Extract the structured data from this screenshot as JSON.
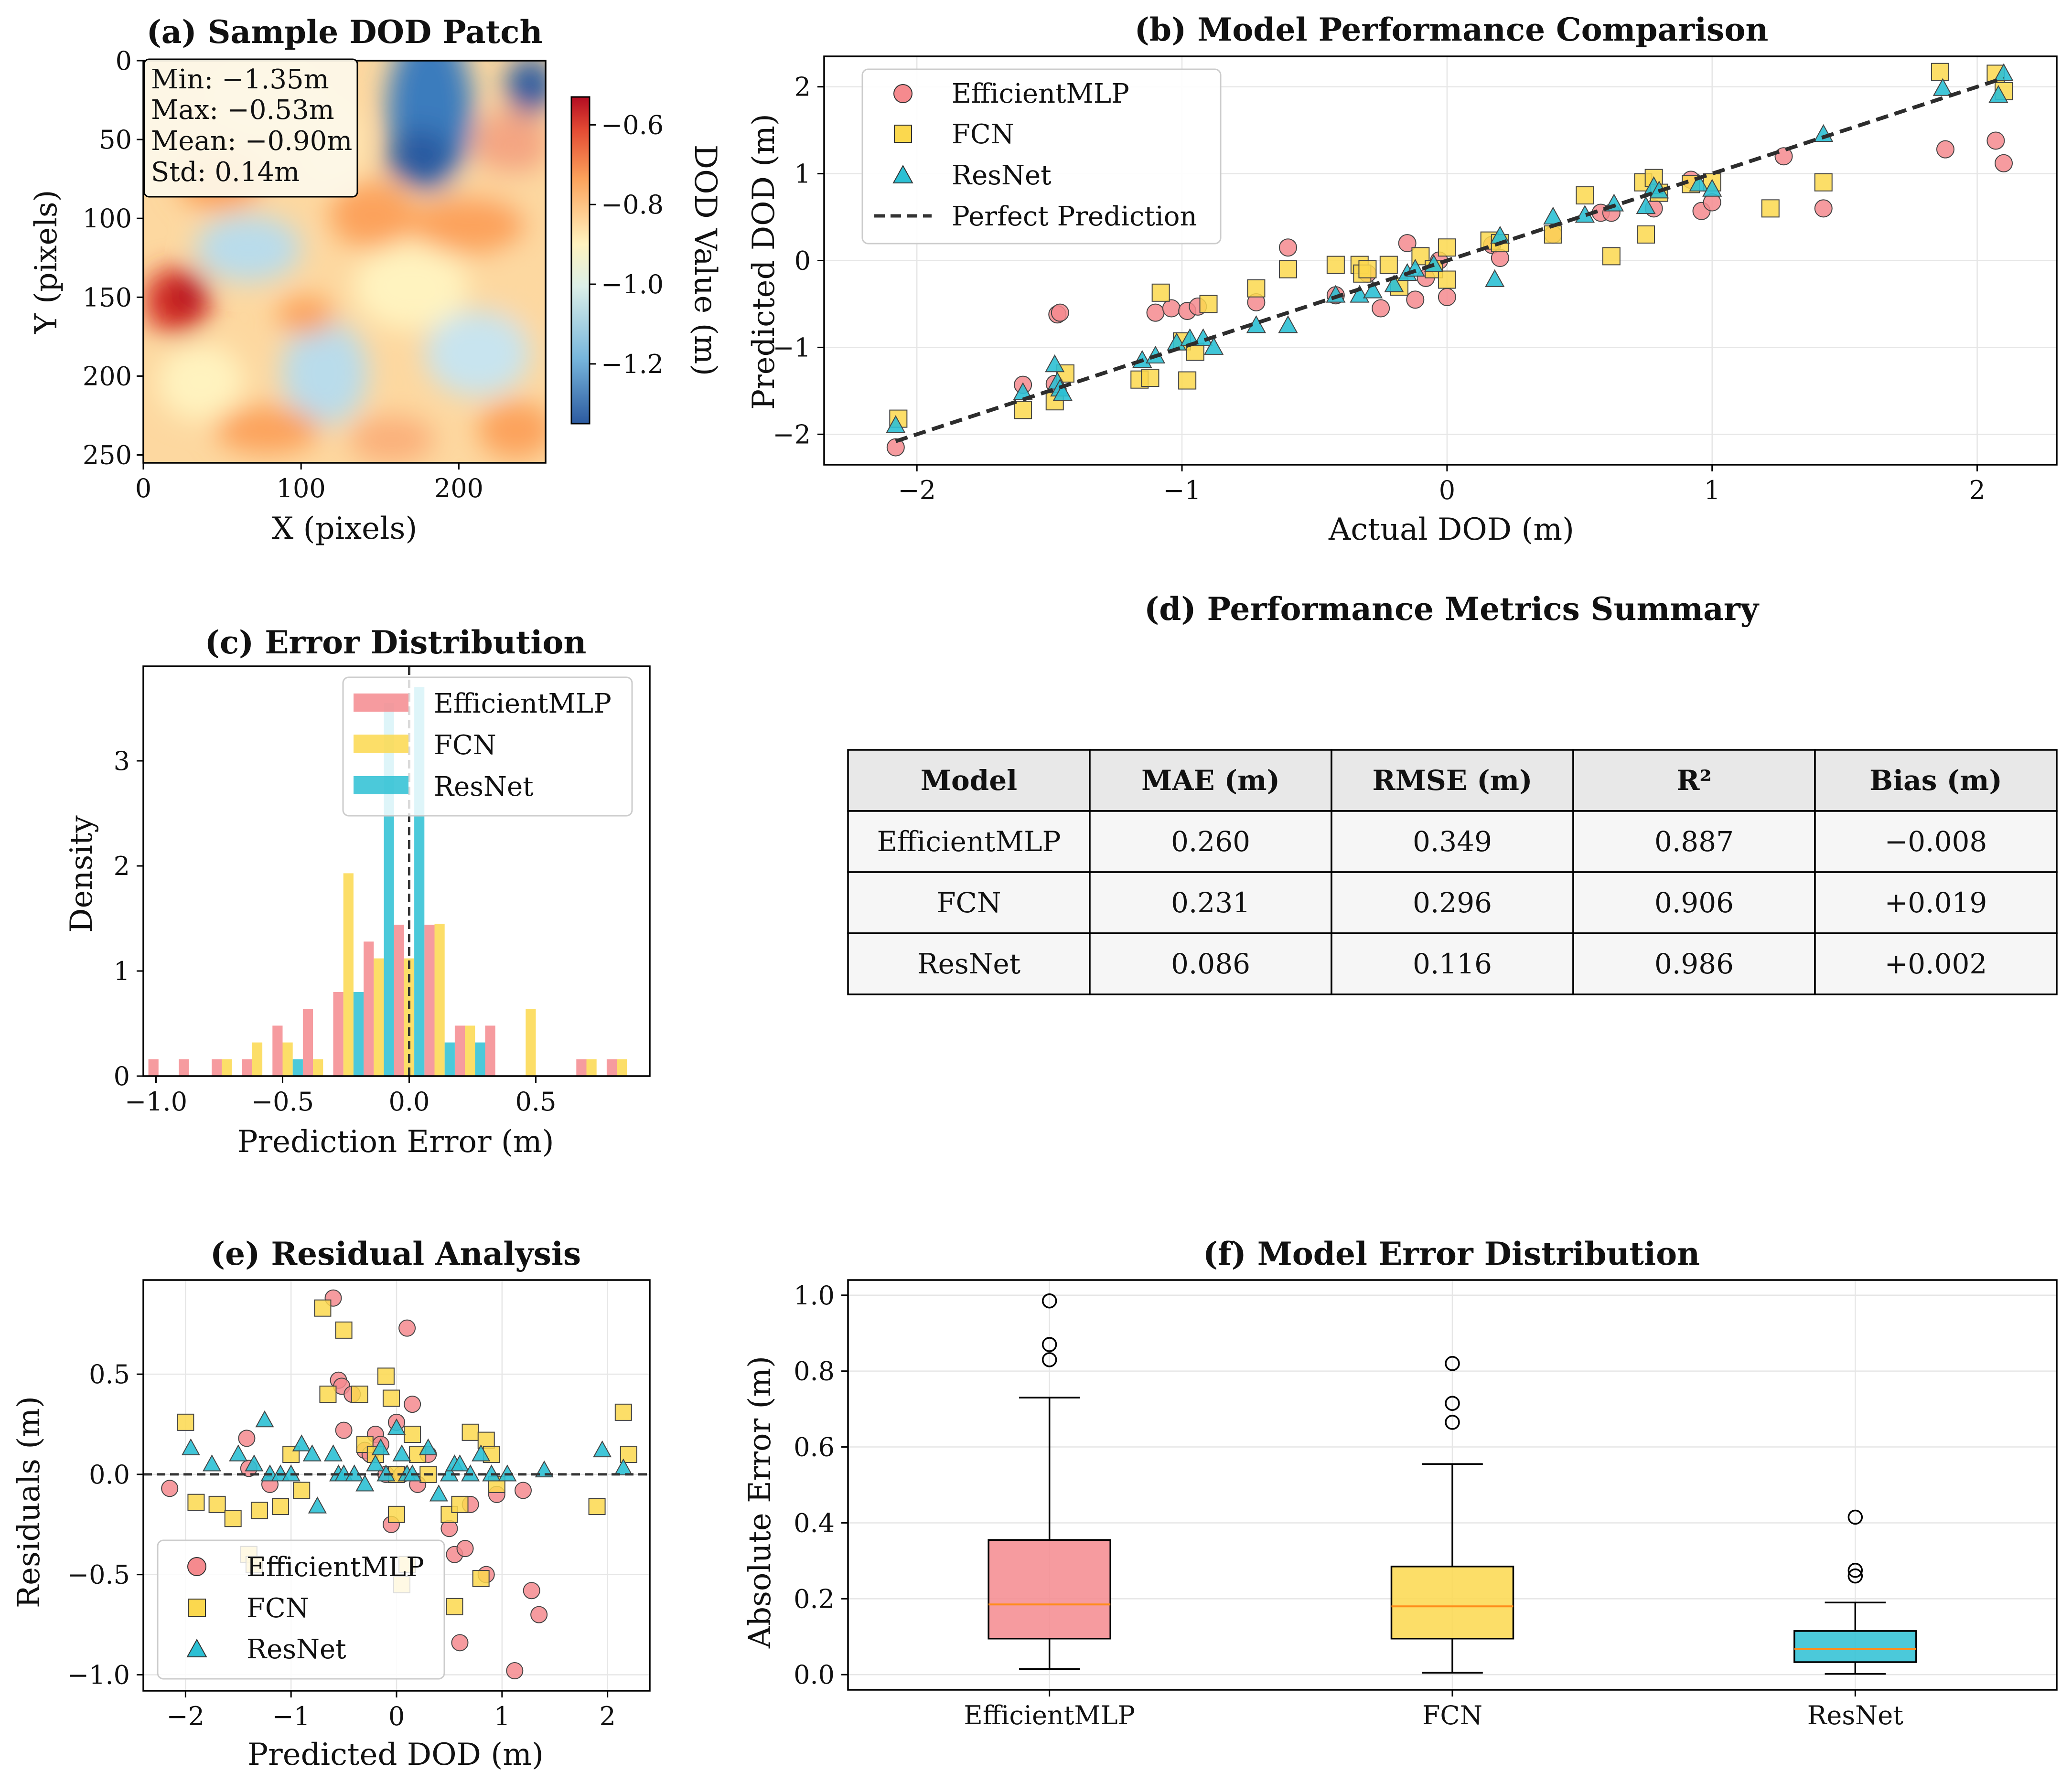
{
  "colors": {
    "efficientmlp": "#f58a8e",
    "fcn": "#fbd84e",
    "resnet": "#2cc0d4",
    "median": "#ff8c1a",
    "grid": "#e6e6e6",
    "header_bg": "#e8e8e8",
    "row_bg": "#f6f6f6"
  },
  "chart_data": [
    {
      "id": "a",
      "type": "heatmap",
      "title": "(a) Sample DOD Patch",
      "xlabel": "X (pixels)",
      "ylabel": "Y (pixels)",
      "xticks": [
        0,
        100,
        200
      ],
      "yticks": [
        0,
        50,
        100,
        150,
        200,
        250
      ],
      "xlim": [
        0,
        255
      ],
      "ylim": [
        0,
        255
      ],
      "colorbar": {
        "label": "DOD Value (m)",
        "range": [
          -1.35,
          -0.53
        ],
        "ticks": [
          -0.6,
          -0.8,
          -1.0,
          -1.2
        ],
        "tick_labels": [
          "−0.6",
          "−0.8",
          "−1.0",
          "−1.2"
        ]
      },
      "stats": [
        "Min: −1.35m",
        "Max: −0.53m",
        "Mean: −0.90m",
        "Std: 0.14m"
      ]
    },
    {
      "id": "b",
      "type": "scatter",
      "title": "(b) Model Performance Comparison",
      "xlabel": "Actual DOD (m)",
      "ylabel": "Predicted DOD (m)",
      "xlim": [
        -2.35,
        2.3
      ],
      "ylim": [
        -2.35,
        2.35
      ],
      "xticks": [
        -2,
        -1,
        0,
        1,
        2
      ],
      "yticks": [
        -2,
        -1,
        0,
        1,
        2
      ],
      "tick_labels": [
        "−2",
        "−1",
        "0",
        "1",
        "2"
      ],
      "legend": [
        "EfficientMLP",
        "FCN",
        "ResNet",
        "Perfect Prediction"
      ],
      "series": [
        {
          "name": "EfficientMLP",
          "x": [
            -2.08,
            -1.6,
            -1.48,
            -1.47,
            -1.46,
            -1.1,
            -1.04,
            -0.98,
            -0.94,
            -0.72,
            -0.6,
            -0.42,
            -0.3,
            -0.25,
            -0.15,
            -0.12,
            -0.08,
            -0.03,
            0.0,
            0.17,
            0.2,
            0.4,
            0.58,
            0.62,
            0.78,
            0.92,
            0.96,
            1.0,
            1.27,
            1.42,
            1.88,
            2.07,
            2.1
          ],
          "y": [
            -2.15,
            -1.43,
            -1.42,
            -0.62,
            -0.6,
            -0.6,
            -0.55,
            -0.58,
            -0.53,
            -0.48,
            0.15,
            -0.4,
            -0.15,
            -0.55,
            0.2,
            -0.45,
            -0.2,
            0.0,
            -0.42,
            0.18,
            0.03,
            0.3,
            0.55,
            0.55,
            0.6,
            0.93,
            0.57,
            0.67,
            1.2,
            0.6,
            1.28,
            1.38,
            1.12
          ]
        },
        {
          "name": "FCN",
          "x": [
            -2.07,
            -1.6,
            -1.48,
            -1.44,
            -1.16,
            -1.12,
            -1.08,
            -1.0,
            -0.98,
            -0.95,
            -0.9,
            -0.72,
            -0.6,
            -0.42,
            -0.33,
            -0.32,
            -0.3,
            -0.22,
            -0.18,
            -0.1,
            -0.05,
            0.0,
            0.0,
            0.16,
            0.2,
            0.4,
            0.52,
            0.62,
            0.74,
            0.75,
            0.78,
            0.8,
            0.92,
            1.0,
            1.22,
            1.42,
            1.86,
            2.07,
            2.1
          ],
          "y": [
            -1.82,
            -1.72,
            -1.62,
            -1.3,
            -1.37,
            -1.35,
            -0.37,
            -0.93,
            -1.38,
            -1.05,
            -0.5,
            -0.32,
            -0.1,
            -0.05,
            -0.05,
            -0.15,
            -0.1,
            -0.05,
            -0.3,
            0.05,
            -0.1,
            0.15,
            -0.22,
            0.23,
            0.2,
            0.3,
            0.75,
            0.05,
            0.9,
            0.3,
            0.95,
            0.78,
            0.88,
            0.9,
            0.6,
            0.9,
            2.17,
            2.15,
            1.95
          ]
        },
        {
          "name": "ResNet",
          "x": [
            -2.08,
            -1.6,
            -1.48,
            -1.47,
            -1.46,
            -1.45,
            -1.15,
            -1.1,
            -1.02,
            -0.97,
            -0.92,
            -0.88,
            -0.72,
            -0.6,
            -0.42,
            -0.33,
            -0.28,
            -0.2,
            -0.15,
            -0.12,
            -0.05,
            0.18,
            0.2,
            0.4,
            0.52,
            0.63,
            0.75,
            0.78,
            0.8,
            0.95,
            1.0,
            1.42,
            1.87,
            2.08,
            2.1
          ],
          "y": [
            -1.9,
            -1.52,
            -1.2,
            -1.4,
            -1.48,
            -1.53,
            -1.15,
            -1.1,
            -0.95,
            -0.9,
            -0.9,
            -1.0,
            -0.75,
            -0.75,
            -0.4,
            -0.4,
            -0.35,
            -0.28,
            -0.15,
            -0.1,
            -0.05,
            -0.22,
            0.28,
            0.5,
            0.52,
            0.65,
            0.62,
            0.85,
            0.8,
            0.88,
            0.82,
            1.45,
            1.98,
            1.9,
            2.15
          ]
        }
      ],
      "reference_line": {
        "name": "Perfect Prediction",
        "x": [
          -2.08,
          2.1
        ],
        "y": [
          -2.08,
          2.1
        ]
      }
    },
    {
      "id": "c",
      "type": "bar",
      "title": "(c) Error Distribution",
      "xlabel": "Prediction Error (m)",
      "ylabel": "Density",
      "xlim": [
        -1.05,
        0.95
      ],
      "ylim": [
        0,
        3.9
      ],
      "xticks": [
        -1.0,
        -0.5,
        0.0,
        0.5
      ],
      "xtick_labels": [
        "−1.0",
        "−0.5",
        "0.0",
        "0.5"
      ],
      "yticks": [
        0,
        1,
        2,
        3
      ],
      "bin_centers": [
        -0.97,
        -0.85,
        -0.72,
        -0.6,
        -0.48,
        -0.36,
        -0.24,
        -0.12,
        0.0,
        0.12,
        0.24,
        0.36,
        0.48,
        0.6,
        0.72,
        0.84
      ],
      "bin_width": 0.12,
      "vline_x": 0.0,
      "legend": [
        "EfficientMLP",
        "FCN",
        "ResNet"
      ],
      "series": [
        {
          "name": "EfficientMLP",
          "values": [
            0.16,
            0.16,
            0.16,
            0.16,
            0.48,
            0.64,
            0.8,
            1.28,
            1.44,
            1.44,
            0.48,
            0.48,
            0.0,
            0.0,
            0.16,
            0.16
          ]
        },
        {
          "name": "FCN",
          "values": [
            0.0,
            0.0,
            0.16,
            0.32,
            0.32,
            0.16,
            1.93,
            1.12,
            1.12,
            1.45,
            0.48,
            0.0,
            0.64,
            0.0,
            0.16,
            0.16
          ]
        },
        {
          "name": "ResNet",
          "values": [
            0.0,
            0.0,
            0.0,
            0.0,
            0.16,
            0.0,
            0.8,
            3.55,
            3.7,
            0.32,
            0.32,
            0.0,
            0.0,
            0.0,
            0.0,
            0.0
          ]
        }
      ]
    },
    {
      "id": "d",
      "type": "table",
      "title": "(d) Performance Metrics Summary",
      "columns": [
        "Model",
        "MAE (m)",
        "RMSE (m)",
        "R²",
        "Bias (m)"
      ],
      "rows": [
        [
          "EfficientMLP",
          "0.260",
          "0.349",
          "0.887",
          "−0.008"
        ],
        [
          "FCN",
          "0.231",
          "0.296",
          "0.906",
          "+0.019"
        ],
        [
          "ResNet",
          "0.086",
          "0.116",
          "0.986",
          "+0.002"
        ]
      ]
    },
    {
      "id": "e",
      "type": "scatter",
      "title": "(e) Residual Analysis",
      "xlabel": "Predicted DOD (m)",
      "ylabel": "Residuals (m)",
      "xlim": [
        -2.4,
        2.4
      ],
      "ylim": [
        -1.08,
        0.97
      ],
      "xticks": [
        -2,
        -1,
        0,
        1,
        2
      ],
      "xtick_labels": [
        "−2",
        "−1",
        "0",
        "1",
        "2"
      ],
      "yticks": [
        -1.0,
        -0.5,
        0.0,
        0.5
      ],
      "ytick_labels": [
        "−1.0",
        "−0.5",
        "0.0",
        "0.5"
      ],
      "hline_y": 0.0,
      "legend": [
        "EfficientMLP",
        "FCN",
        "ResNet"
      ],
      "series": [
        {
          "name": "EfficientMLP",
          "x": [
            -2.15,
            -1.42,
            -1.4,
            -1.2,
            -0.6,
            -0.55,
            -0.52,
            -0.5,
            -0.42,
            -0.3,
            -0.25,
            -0.2,
            -0.15,
            -0.1,
            -0.05,
            0.0,
            0.05,
            0.1,
            0.15,
            0.2,
            0.3,
            0.5,
            0.55,
            0.6,
            0.65,
            0.7,
            0.85,
            0.95,
            1.12,
            1.2,
            1.28,
            1.35
          ],
          "y": [
            -0.07,
            0.18,
            0.03,
            -0.05,
            0.88,
            0.47,
            0.44,
            0.22,
            0.4,
            0.12,
            0.1,
            0.2,
            0.15,
            0.0,
            -0.25,
            0.26,
            0.0,
            0.73,
            0.35,
            -0.05,
            0.1,
            -0.27,
            -0.4,
            -0.84,
            -0.37,
            -0.15,
            -0.5,
            -0.1,
            -0.98,
            -0.08,
            -0.58,
            -0.7
          ]
        },
        {
          "name": "FCN",
          "x": [
            -2.0,
            -1.9,
            -1.7,
            -1.55,
            -1.4,
            -1.35,
            -1.3,
            -1.1,
            -1.0,
            -0.9,
            -0.7,
            -0.65,
            -0.5,
            -0.35,
            -0.3,
            -0.2,
            -0.1,
            -0.05,
            0.0,
            0.0,
            0.05,
            0.1,
            0.15,
            0.2,
            0.3,
            0.5,
            0.55,
            0.6,
            0.7,
            0.8,
            0.85,
            0.9,
            0.95,
            1.9,
            2.15,
            2.2
          ],
          "y": [
            0.26,
            -0.14,
            -0.15,
            -0.22,
            -0.4,
            -0.45,
            -0.18,
            -0.16,
            0.1,
            -0.08,
            0.83,
            0.4,
            0.72,
            0.4,
            0.15,
            0.1,
            0.49,
            0.38,
            -0.2,
            0.0,
            -0.55,
            -0.45,
            0.2,
            0.1,
            0.0,
            -0.2,
            -0.66,
            -0.15,
            0.21,
            -0.52,
            0.17,
            0.1,
            -0.05,
            -0.16,
            0.31,
            0.1
          ]
        },
        {
          "name": "ResNet",
          "x": [
            -1.95,
            -1.75,
            -1.5,
            -1.35,
            -1.25,
            -1.2,
            -1.1,
            -1.0,
            -0.9,
            -0.8,
            -0.75,
            -0.6,
            -0.55,
            -0.5,
            -0.4,
            -0.3,
            -0.2,
            -0.15,
            -0.1,
            0.0,
            0.05,
            0.1,
            0.15,
            0.3,
            0.4,
            0.5,
            0.55,
            0.6,
            0.7,
            0.8,
            0.9,
            1.05,
            1.4,
            1.95,
            2.15
          ],
          "y": [
            0.13,
            0.05,
            0.1,
            0.05,
            0.27,
            0.0,
            0.0,
            0.0,
            0.15,
            0.1,
            -0.16,
            0.1,
            0.0,
            0.0,
            0.0,
            -0.05,
            0.05,
            0.13,
            0.0,
            0.23,
            0.1,
            0.0,
            0.0,
            0.13,
            -0.1,
            0.0,
            0.05,
            0.05,
            0.0,
            0.1,
            0.0,
            0.0,
            0.02,
            0.12,
            0.03
          ]
        }
      ]
    },
    {
      "id": "f",
      "type": "box",
      "title": "(f) Model Error Distribution",
      "xlabel": "",
      "ylabel": "Absolute Error (m)",
      "ylim": [
        -0.04,
        1.04
      ],
      "yticks": [
        0.0,
        0.2,
        0.4,
        0.6,
        0.8,
        1.0
      ],
      "ytick_labels": [
        "0.0",
        "0.2",
        "0.4",
        "0.6",
        "0.8",
        "1.0"
      ],
      "categories": [
        "EfficientMLP",
        "FCN",
        "ResNet"
      ],
      "boxes": [
        {
          "name": "EfficientMLP",
          "min": 0.015,
          "q1": 0.095,
          "median": 0.185,
          "q3": 0.355,
          "max": 0.73,
          "outliers": [
            0.83,
            0.87,
            0.985
          ]
        },
        {
          "name": "FCN",
          "min": 0.005,
          "q1": 0.095,
          "median": 0.18,
          "q3": 0.285,
          "max": 0.555,
          "outliers": [
            0.665,
            0.715,
            0.82
          ]
        },
        {
          "name": "ResNet",
          "min": 0.002,
          "q1": 0.033,
          "median": 0.068,
          "q3": 0.115,
          "max": 0.19,
          "outliers": [
            0.26,
            0.275,
            0.415
          ]
        }
      ]
    }
  ]
}
